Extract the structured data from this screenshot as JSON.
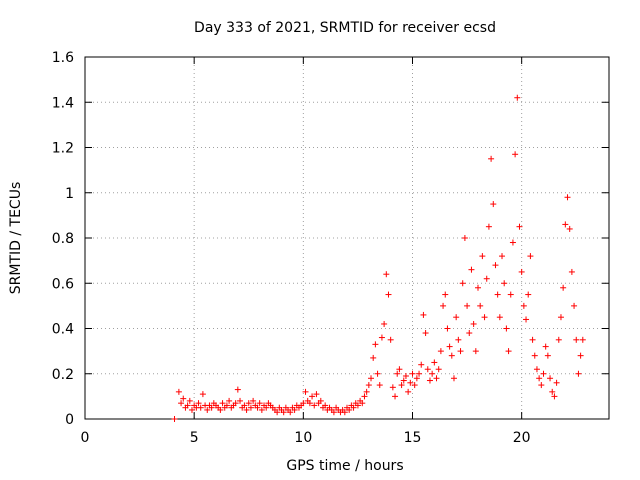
{
  "chart_data": {
    "type": "scatter",
    "title": "Day 333 of 2021, SRMTID for receiver ecsd",
    "xlabel": "GPS time / hours",
    "ylabel": "SRMTID / TECUs",
    "xlim": [
      0,
      24
    ],
    "ylim": [
      0,
      1.6
    ],
    "xticks": [
      0,
      5,
      10,
      15,
      20
    ],
    "yticks": [
      0,
      0.2,
      0.4,
      0.6,
      0.8,
      1,
      1.2,
      1.4,
      1.6
    ],
    "xtick_labels": [
      "0",
      "5",
      "10",
      "15",
      "20"
    ],
    "ytick_labels": [
      "0",
      "0.2",
      "0.4",
      "0.6",
      "0.8",
      "1",
      "1.2",
      "1.4",
      "1.6"
    ],
    "grid": true,
    "marker": "+",
    "series": [
      {
        "name": "SRMTID",
        "color": "#ff0000",
        "x": [
          4.1,
          4.3,
          4.4,
          4.5,
          4.6,
          4.7,
          4.8,
          4.9,
          5.0,
          5.1,
          5.2,
          5.3,
          5.4,
          5.5,
          5.6,
          5.7,
          5.8,
          5.9,
          6.0,
          6.1,
          6.2,
          6.3,
          6.4,
          6.5,
          6.6,
          6.7,
          6.8,
          6.9,
          7.0,
          7.1,
          7.2,
          7.3,
          7.4,
          7.5,
          7.6,
          7.7,
          7.8,
          7.9,
          8.0,
          8.1,
          8.2,
          8.3,
          8.4,
          8.5,
          8.6,
          8.7,
          8.8,
          8.9,
          9.0,
          9.1,
          9.2,
          9.3,
          9.4,
          9.5,
          9.6,
          9.7,
          9.8,
          9.9,
          10.0,
          10.1,
          10.2,
          10.3,
          10.4,
          10.5,
          10.6,
          10.7,
          10.8,
          10.9,
          11.0,
          11.1,
          11.2,
          11.3,
          11.4,
          11.5,
          11.6,
          11.7,
          11.8,
          11.9,
          12.0,
          12.1,
          12.2,
          12.3,
          12.4,
          12.5,
          12.6,
          12.7,
          12.8,
          12.9,
          13.0,
          13.1,
          13.2,
          13.3,
          13.4,
          13.5,
          13.6,
          13.7,
          13.8,
          13.9,
          14.0,
          14.1,
          14.2,
          14.3,
          14.4,
          14.5,
          14.6,
          14.7,
          14.8,
          14.9,
          15.0,
          15.1,
          15.2,
          15.3,
          15.4,
          15.5,
          15.6,
          15.7,
          15.8,
          15.9,
          16.0,
          16.1,
          16.2,
          16.3,
          16.4,
          16.5,
          16.6,
          16.7,
          16.8,
          16.9,
          17.0,
          17.1,
          17.2,
          17.3,
          17.4,
          17.5,
          17.6,
          17.7,
          17.8,
          17.9,
          18.0,
          18.1,
          18.2,
          18.3,
          18.4,
          18.5,
          18.6,
          18.7,
          18.8,
          18.9,
          19.0,
          19.1,
          19.2,
          19.3,
          19.4,
          19.5,
          19.6,
          19.7,
          19.8,
          19.9,
          20.0,
          20.1,
          20.2,
          20.3,
          20.4,
          20.5,
          20.6,
          20.7,
          20.8,
          20.9,
          21.0,
          21.1,
          21.2,
          21.3,
          21.4,
          21.5,
          21.6,
          21.7,
          21.8,
          21.9,
          22.0,
          22.1,
          22.2,
          22.3,
          22.4,
          22.5,
          22.6,
          22.7,
          22.8
        ],
        "y": [
          0.0,
          0.12,
          0.07,
          0.09,
          0.05,
          0.06,
          0.08,
          0.04,
          0.06,
          0.05,
          0.07,
          0.05,
          0.11,
          0.06,
          0.04,
          0.06,
          0.05,
          0.07,
          0.06,
          0.05,
          0.04,
          0.07,
          0.05,
          0.06,
          0.08,
          0.05,
          0.06,
          0.07,
          0.13,
          0.08,
          0.05,
          0.06,
          0.04,
          0.07,
          0.05,
          0.08,
          0.06,
          0.05,
          0.07,
          0.04,
          0.06,
          0.05,
          0.07,
          0.06,
          0.05,
          0.04,
          0.03,
          0.05,
          0.04,
          0.03,
          0.05,
          0.04,
          0.03,
          0.05,
          0.04,
          0.06,
          0.05,
          0.06,
          0.07,
          0.12,
          0.08,
          0.07,
          0.1,
          0.06,
          0.11,
          0.07,
          0.08,
          0.05,
          0.06,
          0.04,
          0.05,
          0.04,
          0.03,
          0.05,
          0.04,
          0.03,
          0.04,
          0.03,
          0.05,
          0.04,
          0.06,
          0.05,
          0.07,
          0.06,
          0.08,
          0.07,
          0.1,
          0.12,
          0.15,
          0.18,
          0.27,
          0.33,
          0.2,
          0.15,
          0.36,
          0.42,
          0.64,
          0.55,
          0.35,
          0.14,
          0.1,
          0.2,
          0.22,
          0.15,
          0.17,
          0.19,
          0.12,
          0.16,
          0.2,
          0.15,
          0.18,
          0.2,
          0.24,
          0.46,
          0.38,
          0.22,
          0.17,
          0.2,
          0.25,
          0.18,
          0.22,
          0.3,
          0.5,
          0.55,
          0.4,
          0.32,
          0.28,
          0.18,
          0.45,
          0.35,
          0.3,
          0.6,
          0.8,
          0.5,
          0.38,
          0.66,
          0.42,
          0.3,
          0.58,
          0.5,
          0.72,
          0.45,
          0.62,
          0.85,
          1.15,
          0.95,
          0.68,
          0.55,
          0.45,
          0.72,
          0.6,
          0.4,
          0.3,
          0.55,
          0.78,
          1.17,
          1.42,
          0.85,
          0.65,
          0.5,
          0.44,
          0.55,
          0.72,
          0.35,
          0.28,
          0.22,
          0.18,
          0.15,
          0.2,
          0.32,
          0.28,
          0.18,
          0.12,
          0.1,
          0.16,
          0.35,
          0.45,
          0.58,
          0.86,
          0.98,
          0.84,
          0.65,
          0.5,
          0.35,
          0.2,
          0.28,
          0.35
        ]
      }
    ]
  }
}
